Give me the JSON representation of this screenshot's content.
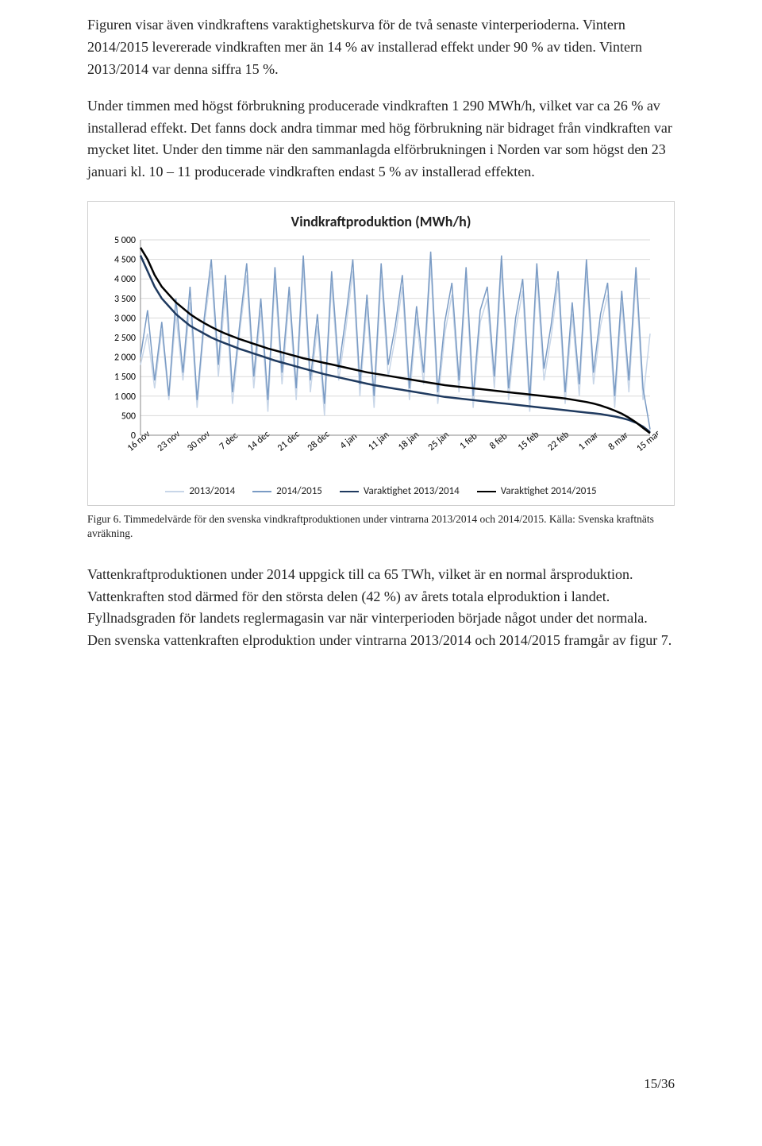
{
  "paragraphs": {
    "p1": "Figuren visar även vindkraftens varaktighetskurva för de två senaste vinterperioderna. Vintern 2014/2015 levererade vindkraften mer än 14 % av installerad effekt under 90 % av tiden. Vintern 2013/2014 var denna siffra 15 %.",
    "p2": "Under timmen med högst förbrukning producerade vindkraften 1 290 MWh/h, vilket var ca 26 % av installerad effekt. Det fanns dock andra timmar med hög förbrukning när bidraget från vindkraften var mycket litet. Under den timme när den sammanlagda elförbrukningen i Norden var som högst den 23 januari kl. 10 – 11 producerade vindkraften endast 5 % av installerad effekten.",
    "p3": "Vattenkraftproduktionen under 2014 uppgick till ca 65 TWh, vilket är en normal årsproduktion. Vattenkraften stod därmed för den största delen (42 %) av årets totala elproduktion i landet. Fyllnadsgraden för landets reglermagasin var när vinterperioden började något under det normala. Den svenska vattenkraften elproduktion under vintrarna 2013/2014 och 2014/2015 framgår av figur 7."
  },
  "caption": "Figur 6. Timmedelvärde för den svenska vindkraftproduktionen under vintrarna 2013/2014 och 2014/2015. Källa: Svenska kraftnäts avräkning.",
  "pagenum": "15/36",
  "chart": {
    "type": "line",
    "title": "Vindkraftproduktion (MWh/h)",
    "title_fontsize": 18,
    "background_color": "#ffffff",
    "grid_color": "#d9d9d9",
    "ylim": [
      0,
      5000
    ],
    "ytick_step": 500,
    "yticks": [
      "0",
      "500",
      "1 000",
      "1 500",
      "2 000",
      "2 500",
      "3 000",
      "3 500",
      "4 000",
      "4 500",
      "5 000"
    ],
    "xticks": [
      "16 nov",
      "23 nov",
      "30 nov",
      "7 dec",
      "14 dec",
      "21 dec",
      "28 dec",
      "4 jan",
      "11 jan",
      "18 jan",
      "25 jan",
      "1 feb",
      "8 feb",
      "15 feb",
      "22 feb",
      "1 mar",
      "8 mar",
      "15 mar"
    ],
    "legend": [
      {
        "label": "2013/2014",
        "color": "#c8d6e8",
        "width": 2
      },
      {
        "label": "2014/2015",
        "color": "#7a9bc4",
        "width": 2
      },
      {
        "label": "Varaktighet 2013/2014",
        "color": "#1f3a5f",
        "width": 2.5
      },
      {
        "label": "Varaktighet 2014/2015",
        "color": "#000000",
        "width": 2.5
      }
    ],
    "series_2013_2014": {
      "color": "#c8d6e8",
      "width": 1.5,
      "values": [
        1800,
        2600,
        1200,
        2700,
        900,
        3100,
        1400,
        3400,
        700,
        2800,
        4200,
        1500,
        3700,
        800,
        2600,
        4100,
        1200,
        3200,
        600,
        4000,
        1300,
        3500,
        900,
        4300,
        1100,
        2800,
        500,
        3900,
        1400,
        2700,
        4200,
        1000,
        3300,
        700,
        4100,
        1500,
        2500,
        3800,
        900,
        3000,
        1300,
        4400,
        800,
        2600,
        3600,
        1100,
        4000,
        700,
        2900,
        3500,
        1200,
        4300,
        900,
        2700,
        3700,
        600,
        4100,
        1400,
        2500,
        3900,
        800,
        3100,
        1000,
        4200,
        1300,
        2800,
        3600,
        700,
        3400,
        1100,
        4000,
        900,
        2600
      ]
    },
    "series_2014_2015": {
      "color": "#7a9bc4",
      "width": 1.5,
      "values": [
        2000,
        3200,
        1400,
        2900,
        1000,
        3500,
        1600,
        3800,
        900,
        3000,
        4500,
        1800,
        4100,
        1100,
        2800,
        4400,
        1500,
        3500,
        900,
        4300,
        1600,
        3800,
        1200,
        4600,
        1400,
        3100,
        800,
        4200,
        1700,
        3000,
        4500,
        1300,
        3600,
        1000,
        4400,
        1800,
        2800,
        4100,
        1200,
        3300,
        1600,
        4700,
        1100,
        2900,
        3900,
        1400,
        4300,
        1000,
        3200,
        3800,
        1500,
        4600,
        1200,
        3000,
        4000,
        900,
        4400,
        1700,
        2800,
        4200,
        1100,
        3400,
        1300,
        4500,
        1600,
        3100,
        3900,
        1000,
        3700,
        1400,
        4300,
        1200,
        150
      ]
    },
    "duration_2013_2014": {
      "color": "#1f3a5f",
      "width": 2.5,
      "values": [
        4600,
        4200,
        3800,
        3500,
        3300,
        3100,
        2950,
        2800,
        2700,
        2600,
        2500,
        2420,
        2350,
        2280,
        2210,
        2150,
        2090,
        2030,
        1970,
        1910,
        1860,
        1810,
        1760,
        1710,
        1660,
        1610,
        1560,
        1520,
        1480,
        1440,
        1400,
        1360,
        1320,
        1280,
        1250,
        1220,
        1190,
        1160,
        1130,
        1100,
        1070,
        1040,
        1010,
        980,
        960,
        940,
        920,
        900,
        880,
        860,
        840,
        820,
        800,
        780,
        760,
        740,
        720,
        700,
        680,
        660,
        640,
        620,
        600,
        580,
        560,
        540,
        510,
        480,
        440,
        390,
        320,
        220,
        80
      ]
    },
    "duration_2014_2015": {
      "color": "#000000",
      "width": 2.5,
      "values": [
        4800,
        4500,
        4100,
        3800,
        3600,
        3400,
        3250,
        3100,
        2980,
        2870,
        2770,
        2680,
        2600,
        2530,
        2460,
        2400,
        2340,
        2280,
        2220,
        2170,
        2120,
        2070,
        2020,
        1970,
        1930,
        1890,
        1850,
        1810,
        1770,
        1730,
        1690,
        1650,
        1610,
        1580,
        1550,
        1520,
        1490,
        1460,
        1430,
        1400,
        1370,
        1340,
        1310,
        1280,
        1260,
        1240,
        1220,
        1200,
        1180,
        1160,
        1140,
        1120,
        1100,
        1080,
        1060,
        1040,
        1020,
        1000,
        980,
        960,
        940,
        910,
        880,
        850,
        810,
        760,
        700,
        630,
        550,
        450,
        330,
        190,
        50
      ]
    }
  }
}
